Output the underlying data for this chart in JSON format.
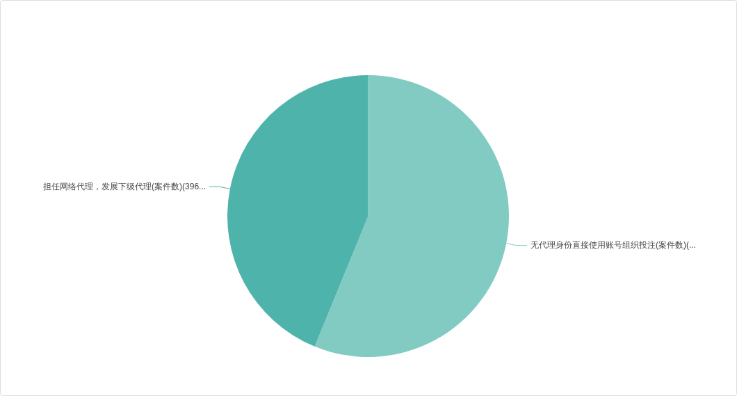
{
  "chart_data": {
    "type": "pie",
    "categories": [
      "无代理身份直接使用账号组织投注(案件数)(...",
      "担任网络代理，发展下级代理(案件数)(396..."
    ],
    "values": [
      56.2,
      43.8
    ],
    "colors": [
      "#82cbc3",
      "#4eb3ab"
    ]
  }
}
